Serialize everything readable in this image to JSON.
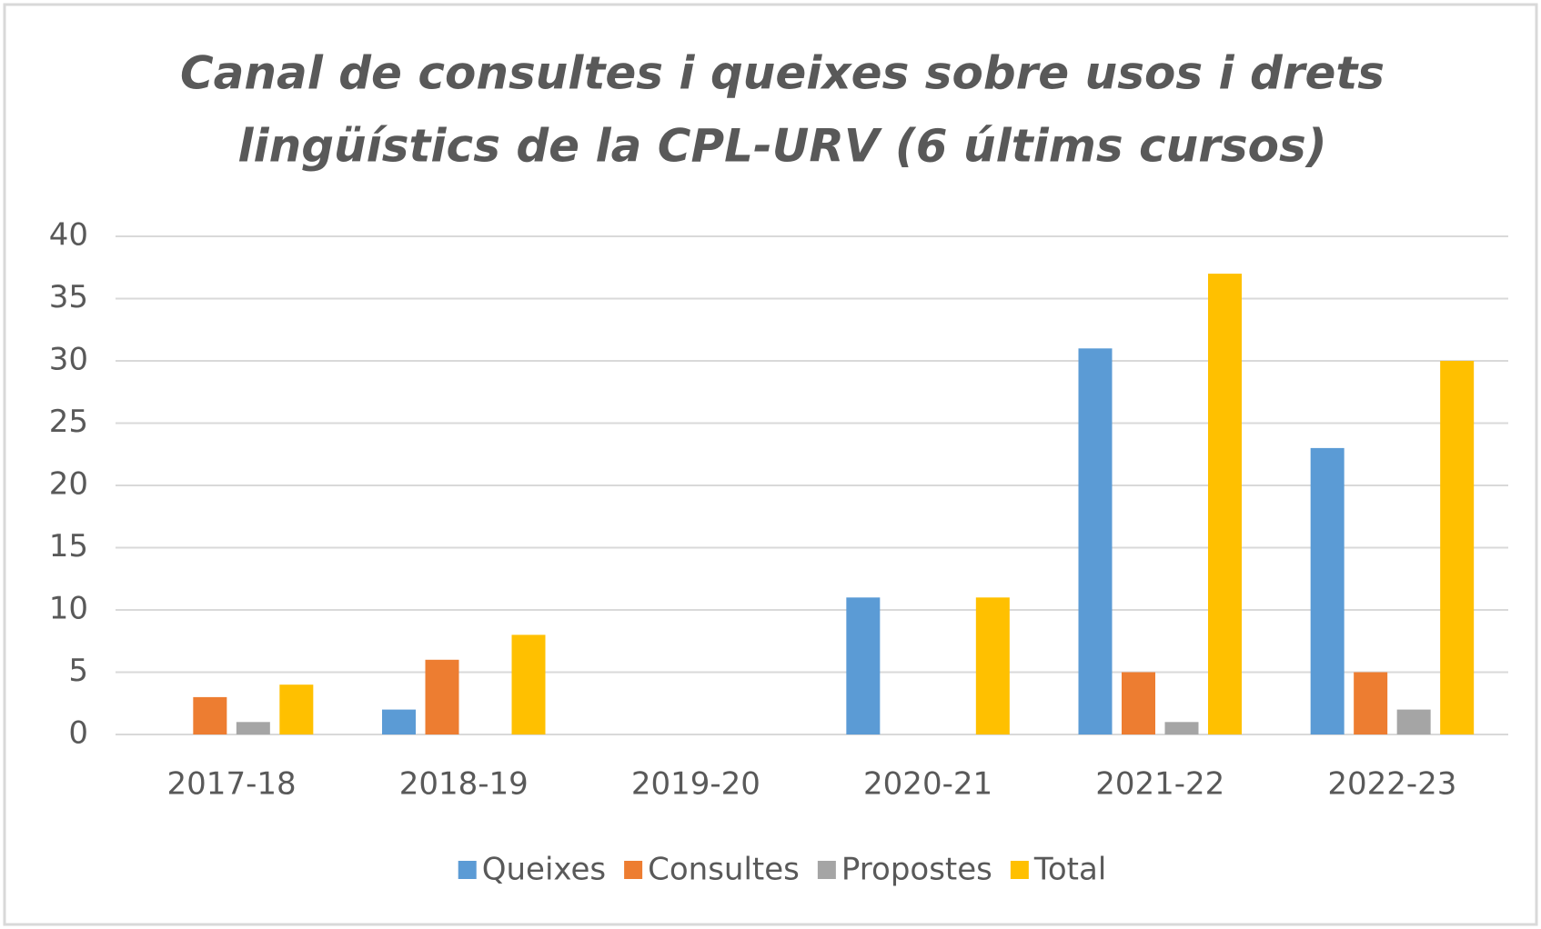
{
  "chart_data": {
    "type": "bar",
    "title": "Canal de consultes i queixes sobre usos i drets lingüístics de la CPL-URV (6 últims cursos)",
    "title_lines": [
      "Canal de consultes i queixes sobre usos i drets",
      "lingüístics de la CPL-URV (6 últims cursos)"
    ],
    "categories": [
      "2017-18",
      "2018-19",
      "2019-20",
      "2020-21",
      "2021-22",
      "2022-23"
    ],
    "series": [
      {
        "name": "Queixes",
        "color": "#5b9bd5",
        "values": [
          0,
          2,
          0,
          11,
          31,
          23
        ]
      },
      {
        "name": "Consultes",
        "color": "#ed7d31",
        "values": [
          3,
          6,
          0,
          0,
          5,
          5
        ]
      },
      {
        "name": "Propostes",
        "color": "#a5a5a5",
        "values": [
          1,
          0,
          0,
          0,
          1,
          2
        ]
      },
      {
        "name": "Total",
        "color": "#ffc000",
        "values": [
          4,
          8,
          0,
          11,
          37,
          30
        ]
      }
    ],
    "ylim": [
      0,
      40
    ],
    "yticks": [
      0,
      5,
      10,
      15,
      20,
      25,
      30,
      35,
      40
    ],
    "grid": true,
    "legend": "bottom"
  }
}
